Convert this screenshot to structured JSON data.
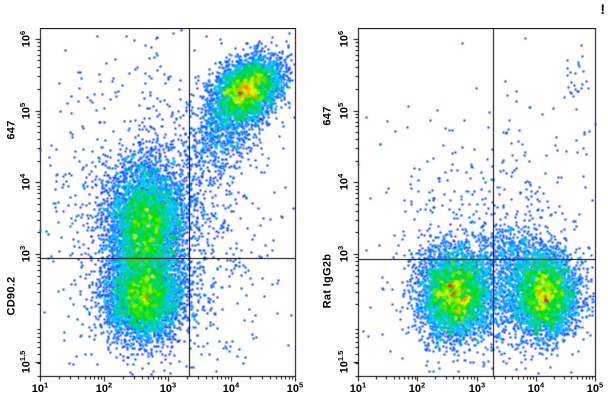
{
  "figure": {
    "alert": "!"
  },
  "colors": {
    "background": "#ffffff",
    "axis": "#000000",
    "density_colormap": [
      "#0000ff",
      "#00c8ff",
      "#00dc00",
      "#ffff00",
      "#ff0000"
    ]
  },
  "chart_data": {
    "type": "scatter",
    "variant": "flow-cytometry-density-dot-plot",
    "scale": "log10",
    "legend": "none",
    "grid": false,
    "plots": [
      {
        "id": "cd90-2",
        "x_axis": {
          "range_log10": [
            1,
            5
          ],
          "tick_base": "10",
          "major_ticks": [
            {
              "log10": 1,
              "exp": "1"
            },
            {
              "log10": 2,
              "exp": "2"
            },
            {
              "log10": 3,
              "exp": "3"
            },
            {
              "log10": 4,
              "exp": "4"
            },
            {
              "log10": 5,
              "exp": "5"
            }
          ]
        },
        "y_axis": {
          "conjugate_label": "647",
          "marker_label": "CD90.2",
          "range_log10": [
            1.3,
            6.15
          ],
          "tick_base": "10",
          "major_ticks": [
            {
              "log10": 6,
              "exp": "6"
            },
            {
              "log10": 5,
              "exp": "5"
            },
            {
              "log10": 4,
              "exp": "4"
            },
            {
              "log10": 3,
              "exp": "3"
            },
            {
              "log10": 1.5,
              "exp": "1.5"
            }
          ]
        },
        "gates": {
          "vertical_log10_x": 3.33,
          "horizontal_log10_y": 2.95
        },
        "seed": 1337,
        "populations": [
          {
            "name": "double-positive-high",
            "n": 3600,
            "center_log10": [
              4.25,
              5.3
            ],
            "sigma_log10": [
              0.27,
              0.22
            ],
            "rho": 0.35
          },
          {
            "name": "double-positive-tail",
            "n": 900,
            "center_log10": [
              3.95,
              4.85
            ],
            "sigma_log10": [
              0.33,
              0.38
            ],
            "rho": 0.55
          },
          {
            "name": "cd90-intermediate-x-negative",
            "n": 5200,
            "center_log10": [
              2.65,
              3.4
            ],
            "sigma_log10": [
              0.3,
              0.42
            ],
            "rho": 0
          },
          {
            "name": "double-negative",
            "n": 4200,
            "center_log10": [
              2.62,
              2.4
            ],
            "sigma_log10": [
              0.3,
              0.3
            ],
            "rho": 0
          },
          {
            "name": "background-scatter",
            "n": 1400,
            "center_log10": [
              2.9,
              3.5
            ],
            "sigma_log10": [
              0.85,
              1.05
            ],
            "rho": 0
          }
        ]
      },
      {
        "id": "rat-igg2b",
        "x_axis": {
          "range_log10": [
            1,
            5
          ],
          "tick_base": "10",
          "major_ticks": [
            {
              "log10": 1,
              "exp": "1"
            },
            {
              "log10": 2,
              "exp": "2"
            },
            {
              "log10": 3,
              "exp": "3"
            },
            {
              "log10": 4,
              "exp": "4"
            },
            {
              "log10": 5,
              "exp": "5"
            }
          ]
        },
        "y_axis": {
          "conjugate_label": "647",
          "marker_label": "Rat IgG2b",
          "range_log10": [
            1.3,
            6.15
          ],
          "tick_base": "10",
          "major_ticks": [
            {
              "log10": 6,
              "exp": "6"
            },
            {
              "log10": 5,
              "exp": "5"
            },
            {
              "log10": 4,
              "exp": "4"
            },
            {
              "log10": 3,
              "exp": "3"
            },
            {
              "log10": 1.5,
              "exp": "1.5"
            }
          ]
        },
        "gates": {
          "vertical_log10_x": 3.28,
          "horizontal_log10_y": 2.93
        },
        "seed": 2024,
        "populations": [
          {
            "name": "isotype-negative-left",
            "n": 4300,
            "center_log10": [
              2.62,
              2.45
            ],
            "sigma_log10": [
              0.3,
              0.3
            ],
            "rho": 0
          },
          {
            "name": "isotype-negative-right",
            "n": 3900,
            "center_log10": [
              4.15,
              2.45
            ],
            "sigma_log10": [
              0.28,
              0.3
            ],
            "rho": 0
          },
          {
            "name": "bridge-low",
            "n": 550,
            "center_log10": [
              3.35,
              2.4
            ],
            "sigma_log10": [
              0.45,
              0.28
            ],
            "rho": 0
          },
          {
            "name": "above-gate-bump",
            "n": 350,
            "center_log10": [
              3.5,
              3.05
            ],
            "sigma_log10": [
              0.33,
              0.2
            ],
            "rho": 0
          },
          {
            "name": "background-scatter",
            "n": 600,
            "center_log10": [
              3.3,
              3.1
            ],
            "sigma_log10": [
              1.0,
              0.95
            ],
            "rho": 0
          },
          {
            "name": "sparse-top-right",
            "n": 28,
            "center_log10": [
              4.72,
              5.3
            ],
            "sigma_log10": [
              0.12,
              0.35
            ],
            "rho": 0
          }
        ]
      }
    ]
  }
}
